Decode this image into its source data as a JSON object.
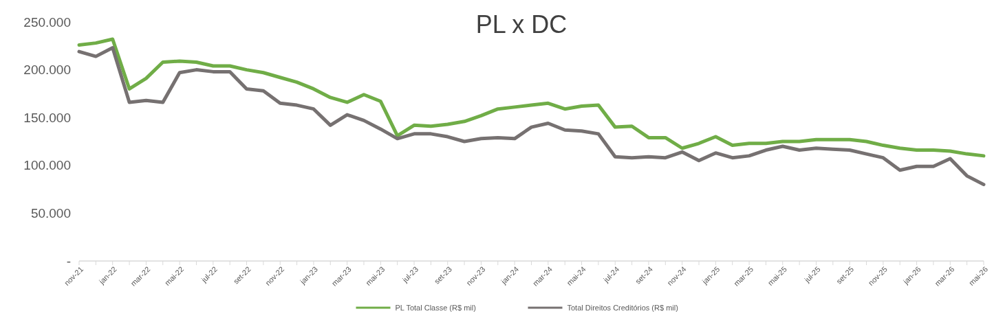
{
  "chart_data": {
    "type": "line",
    "title": "PL x DC",
    "categories": [
      "nov-21",
      null,
      "jan-22",
      null,
      "mar-22",
      null,
      "mai-22",
      null,
      "jul-22",
      null,
      "set-22",
      null,
      "nov-22",
      null,
      "jan-23",
      null,
      "mar-23",
      null,
      "mai-23",
      null,
      "jul-23",
      null,
      "set-23",
      null,
      "nov-23",
      null,
      "jan-24",
      null,
      "mar-24",
      null,
      "mai-24",
      null,
      "jul-24",
      null,
      "set-24",
      null,
      "nov-24",
      null,
      "jan-25",
      null,
      "mar-25",
      null,
      "mai-25",
      null,
      "jul-25",
      null,
      "set-25",
      null,
      "nov-25",
      null,
      "jan-26",
      null,
      "mar-26",
      null,
      "mai-26"
    ],
    "series": [
      {
        "name": "PL Total Classe (R$ mil)",
        "color": "#70ad47",
        "values": [
          226000,
          228000,
          232000,
          180000,
          191000,
          208000,
          209000,
          208000,
          204000,
          204000,
          200000,
          197000,
          192000,
          187000,
          180000,
          171000,
          166000,
          174000,
          167000,
          131000,
          142000,
          141000,
          143000,
          146000,
          152000,
          159000,
          161000,
          163000,
          165000,
          159000,
          162000,
          163000,
          140000,
          141000,
          129000,
          129000,
          118000,
          123000,
          130000,
          121000,
          123000,
          123000,
          125000,
          125000,
          127000,
          127000,
          127000,
          125000,
          121000,
          118000,
          116000,
          116000,
          115000,
          112000,
          110000
        ]
      },
      {
        "name": "Total Direitos Creditórios (R$ mil)",
        "color": "#767171",
        "values": [
          219000,
          214000,
          223000,
          166000,
          168000,
          166000,
          197000,
          200000,
          198000,
          198000,
          180000,
          178000,
          165000,
          163000,
          159000,
          142000,
          153000,
          147000,
          138000,
          128000,
          133000,
          133000,
          130000,
          125000,
          128000,
          129000,
          128000,
          140000,
          144000,
          137000,
          136000,
          133000,
          109000,
          108000,
          109000,
          108000,
          114000,
          105000,
          113000,
          108000,
          110000,
          116000,
          120000,
          116000,
          118000,
          117000,
          116000,
          112000,
          108000,
          95000,
          99000,
          99000,
          107000,
          89000,
          80000
        ]
      }
    ],
    "ylim": [
      0,
      250000
    ],
    "yticks": [
      {
        "value": 0,
        "label": "-"
      },
      {
        "value": 50000,
        "label": "50.000"
      },
      {
        "value": 100000,
        "label": "100.000"
      },
      {
        "value": 150000,
        "label": "150.000"
      },
      {
        "value": 200000,
        "label": "200.000"
      },
      {
        "value": 250000,
        "label": "250.000"
      }
    ],
    "grid": false,
    "legend": "bottom",
    "line_style": "solid",
    "marker": "none"
  }
}
